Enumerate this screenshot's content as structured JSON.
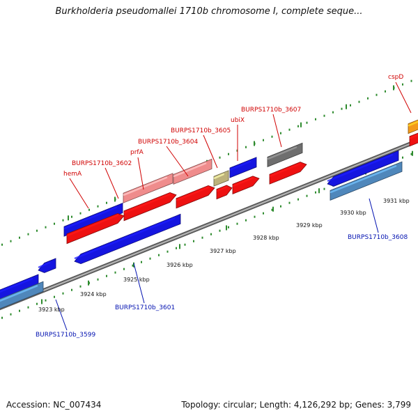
{
  "title": "Burkholderia pseudomallei 1710b chromosome I, complete seque...",
  "footer": {
    "accession": "Accession: NC_007434",
    "topology": "Topology: circular; Length: 4,126,292 bp; Genes: 3,799"
  },
  "axis": {
    "unit": "kbp",
    "ticks": [
      "3923 kbp",
      "3924 kbp",
      "3925 kbp",
      "3926 kbp",
      "3927 kbp",
      "3928 kbp",
      "3929 kbp",
      "3930 kbp",
      "3931 kbp"
    ]
  },
  "colors": {
    "backbone": "#8a8a8a",
    "ruler": "#2e8b2e",
    "forward_label": "#d00000",
    "reverse_label": "#0010b0",
    "red_gene": "#ee1111",
    "pink_gene": "#ef8c8c",
    "blue_gene": "#1515e0",
    "steel_gene": "#4f87bb",
    "olive_gene": "#bdb27a",
    "gray_gene": "#6e6e6e",
    "orange_gene": "#f39a1a"
  },
  "labels": [
    {
      "id": "hemA",
      "text": "hemA",
      "strand": "forward"
    },
    {
      "id": "burps1710b-3602",
      "text": "BURPS1710b_3602",
      "strand": "forward"
    },
    {
      "id": "prfA",
      "text": "prfA",
      "strand": "forward"
    },
    {
      "id": "burps1710b-3604",
      "text": "BURPS1710b_3604",
      "strand": "forward"
    },
    {
      "id": "burps1710b-3605",
      "text": "BURPS1710b_3605",
      "strand": "forward"
    },
    {
      "id": "ubiX",
      "text": "ubiX",
      "strand": "forward"
    },
    {
      "id": "burps1710b-3607",
      "text": "BURPS1710b_3607",
      "strand": "forward"
    },
    {
      "id": "cspD",
      "text": "cspD",
      "strand": "forward"
    },
    {
      "id": "burps1710b-3599",
      "text": "BURPS1710b_3599",
      "strand": "reverse"
    },
    {
      "id": "burps1710b-3601",
      "text": "BURPS1710b_3601",
      "strand": "reverse"
    },
    {
      "id": "burps1710b-3608",
      "text": "BURPS1710b_3608",
      "strand": "reverse"
    }
  ]
}
